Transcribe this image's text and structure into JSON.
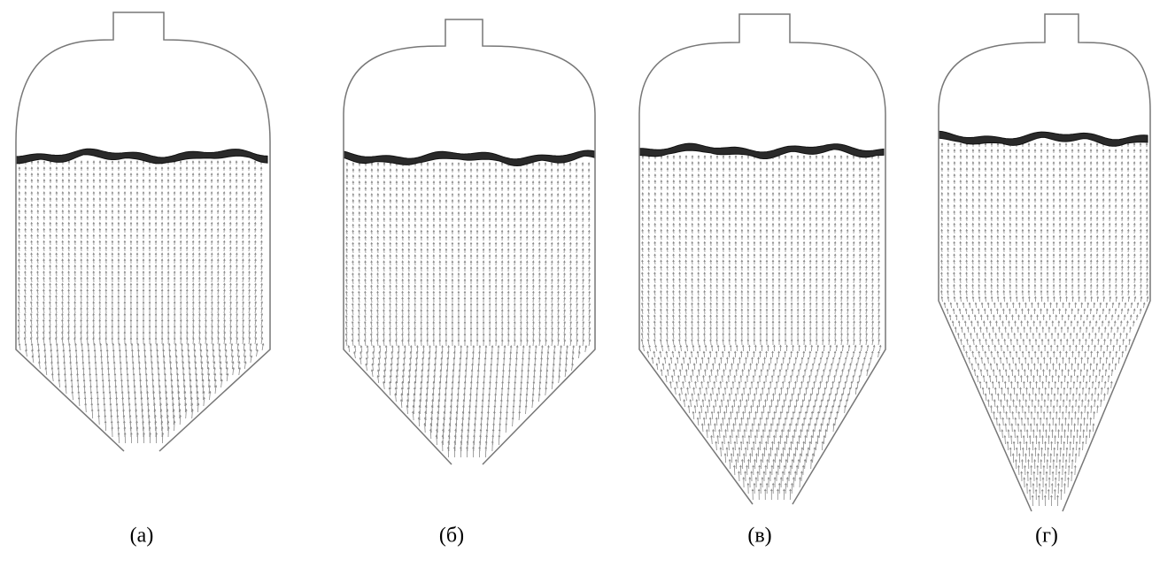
{
  "panels": [
    {
      "label": "(а)"
    },
    {
      "label": "(б)"
    },
    {
      "label": "(в)"
    },
    {
      "label": "(г)"
    }
  ]
}
